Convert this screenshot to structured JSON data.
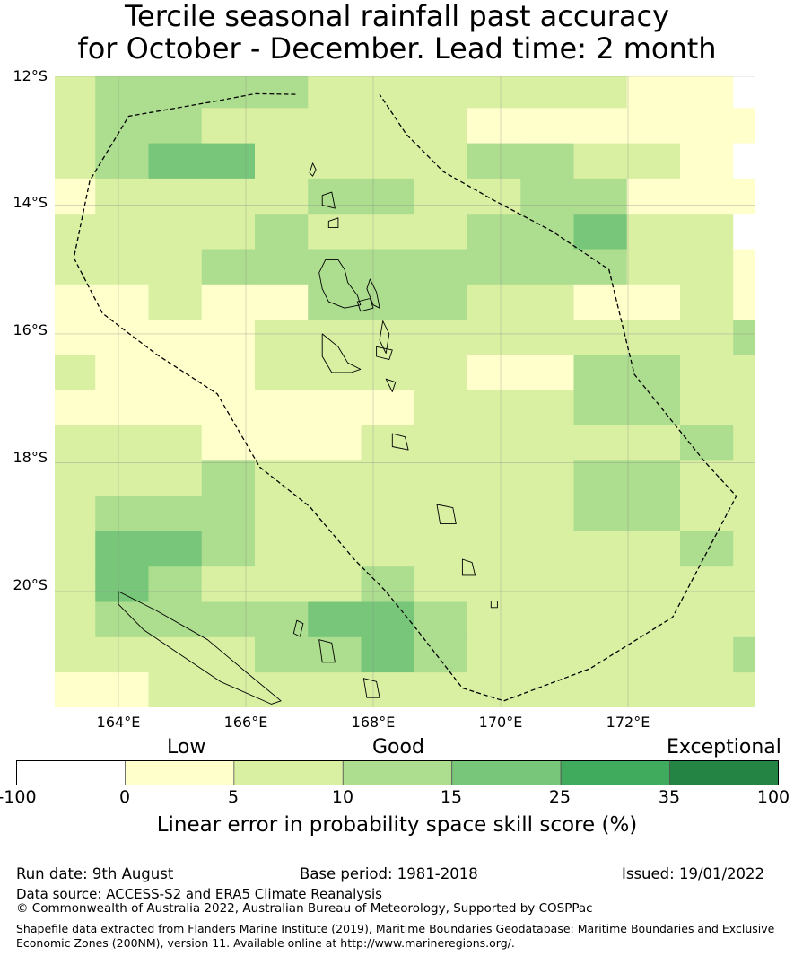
{
  "title": {
    "line1": "Tercile seasonal rainfall past accuracy",
    "line2": "for October - December. Lead time: 2 month"
  },
  "map": {
    "lat_labels": [
      "12°S",
      "14°S",
      "16°S",
      "18°S",
      "20°S"
    ],
    "lon_labels": [
      "164°E",
      "166°E",
      "168°E",
      "170°E",
      "172°E"
    ],
    "extent": {
      "lon": [
        163.0,
        174.0
      ],
      "lat": [
        -21.8,
        -12.0
      ]
    },
    "grid_step_deg": 2,
    "cell_size_deg": 0.833,
    "colors": {
      "c0": "#ffffff",
      "c1": "#ffffcc",
      "c2": "#d9f0a3",
      "c3": "#addd8e",
      "c4": "#78c679",
      "c5": "#41ab5d",
      "c6": "#238443"
    },
    "grid": [
      "2333322222211000",
      "2332222211111110",
      "2344222233221000",
      "1222233223311111",
      "2222322233422011",
      "2223333333322122",
      "1121133322112121",
      "1111222222222323",
      "2111222211332211",
      "1111111222332211",
      "2221112222223211",
      "2223222222332221",
      "2333222222332222",
      "2443222222223221",
      "2432223222222243",
      "2333344322222222",
      "2222334322222323",
      "1122222222222222",
      "1122222222222221",
      "2222222222222222"
    ],
    "eez_boundary": [
      [
        166.78,
        -12.28
      ],
      [
        166.15,
        -12.27
      ],
      [
        165.45,
        -12.4
      ],
      [
        164.16,
        -12.62
      ],
      [
        163.55,
        -13.62
      ],
      [
        163.3,
        -14.82
      ],
      [
        163.75,
        -15.68
      ],
      [
        164.6,
        -16.32
      ],
      [
        165.55,
        -16.93
      ],
      [
        166.22,
        -18.07
      ],
      [
        167.0,
        -18.68
      ],
      [
        167.7,
        -19.5
      ],
      [
        168.2,
        -20.0
      ],
      [
        168.65,
        -20.55
      ],
      [
        169.4,
        -21.5
      ],
      [
        170.05,
        -21.7
      ],
      [
        171.4,
        -21.2
      ],
      [
        172.7,
        -20.4
      ],
      [
        173.7,
        -18.52
      ],
      [
        173.2,
        -17.98
      ],
      [
        172.1,
        -16.63
      ],
      [
        171.7,
        -15.0
      ],
      [
        170.8,
        -14.4
      ],
      [
        169.9,
        -13.93
      ],
      [
        169.1,
        -13.48
      ],
      [
        168.52,
        -12.9
      ],
      [
        168.1,
        -12.28
      ]
    ],
    "islands": [
      [
        [
          167.45,
          -14.85
        ],
        [
          167.55,
          -15.0
        ],
        [
          167.6,
          -15.2
        ],
        [
          167.75,
          -15.4
        ],
        [
          167.8,
          -15.55
        ],
        [
          167.55,
          -15.6
        ],
        [
          167.3,
          -15.5
        ],
        [
          167.2,
          -15.3
        ],
        [
          167.15,
          -15.05
        ],
        [
          167.25,
          -14.85
        ]
      ],
      [
        [
          167.95,
          -15.15
        ],
        [
          168.05,
          -15.35
        ],
        [
          168.1,
          -15.6
        ],
        [
          168.0,
          -15.55
        ],
        [
          167.9,
          -15.3
        ]
      ],
      [
        [
          168.15,
          -15.8
        ],
        [
          168.25,
          -16.0
        ],
        [
          168.2,
          -16.3
        ],
        [
          168.1,
          -16.1
        ]
      ],
      [
        [
          167.75,
          -15.5
        ],
        [
          167.95,
          -15.45
        ],
        [
          168.0,
          -15.6
        ],
        [
          167.8,
          -15.65
        ]
      ],
      [
        [
          167.2,
          -16.0
        ],
        [
          167.45,
          -16.2
        ],
        [
          167.6,
          -16.45
        ],
        [
          167.8,
          -16.55
        ],
        [
          167.65,
          -16.6
        ],
        [
          167.35,
          -16.6
        ],
        [
          167.2,
          -16.35
        ]
      ],
      [
        [
          168.05,
          -16.2
        ],
        [
          168.3,
          -16.25
        ],
        [
          168.25,
          -16.4
        ],
        [
          168.05,
          -16.35
        ]
      ],
      [
        [
          168.2,
          -16.7
        ],
        [
          168.35,
          -16.75
        ],
        [
          168.3,
          -16.9
        ]
      ],
      [
        [
          168.3,
          -17.55
        ],
        [
          168.5,
          -17.6
        ],
        [
          168.55,
          -17.8
        ],
        [
          168.3,
          -17.75
        ]
      ],
      [
        [
          167.2,
          -13.85
        ],
        [
          167.35,
          -13.8
        ],
        [
          167.4,
          -14.05
        ],
        [
          167.2,
          -14.0
        ]
      ],
      [
        [
          167.3,
          -14.25
        ],
        [
          167.45,
          -14.2
        ],
        [
          167.45,
          -14.35
        ],
        [
          167.3,
          -14.35
        ]
      ],
      [
        [
          167.05,
          -13.35
        ],
        [
          167.1,
          -13.45
        ],
        [
          167.05,
          -13.55
        ],
        [
          167.0,
          -13.5
        ]
      ],
      [
        [
          169.0,
          -18.65
        ],
        [
          169.25,
          -18.7
        ],
        [
          169.3,
          -18.95
        ],
        [
          169.05,
          -18.95
        ]
      ],
      [
        [
          169.4,
          -19.5
        ],
        [
          169.55,
          -19.55
        ],
        [
          169.6,
          -19.75
        ],
        [
          169.4,
          -19.75
        ]
      ],
      [
        [
          169.85,
          -20.15
        ],
        [
          169.95,
          -20.15
        ],
        [
          169.95,
          -20.25
        ],
        [
          169.85,
          -20.25
        ]
      ],
      [
        [
          164.0,
          -20.0
        ],
        [
          164.6,
          -20.3
        ],
        [
          165.4,
          -20.75
        ],
        [
          166.0,
          -21.25
        ],
        [
          166.55,
          -21.7
        ],
        [
          166.4,
          -21.75
        ],
        [
          165.6,
          -21.4
        ],
        [
          165.0,
          -21.0
        ],
        [
          164.4,
          -20.6
        ],
        [
          164.0,
          -20.2
        ]
      ],
      [
        [
          166.8,
          -20.45
        ],
        [
          166.9,
          -20.5
        ],
        [
          166.85,
          -20.7
        ],
        [
          166.75,
          -20.65
        ]
      ],
      [
        [
          167.15,
          -20.75
        ],
        [
          167.35,
          -20.8
        ],
        [
          167.4,
          -21.1
        ],
        [
          167.2,
          -21.1
        ]
      ],
      [
        [
          167.85,
          -21.35
        ],
        [
          168.05,
          -21.4
        ],
        [
          168.1,
          -21.65
        ],
        [
          167.9,
          -21.65
        ]
      ]
    ]
  },
  "colorbar": {
    "categories": [
      "Low",
      "Good",
      "Exceptional"
    ],
    "ticks": [
      "-100",
      "0",
      "5",
      "10",
      "15",
      "25",
      "35",
      "100"
    ],
    "colors": [
      "#ffffff",
      "#ffffcc",
      "#d9f0a3",
      "#addd8e",
      "#78c679",
      "#41ab5d",
      "#238443"
    ],
    "label": "Linear error in probability space skill score (%)"
  },
  "footer": {
    "run_date": "Run date: 9th August",
    "base_period": "Base period: 1981-2018",
    "issued": "Issued: 19/01/2022",
    "data_source": "Data source: ACCESS-S2 and ERA5 Climate Reanalysis",
    "copyright": "© Commonwealth of Australia 2022, Australian Bureau of Meteorology, Supported by COSPPac",
    "shapefile_line1": "Shapefile data extracted from Flanders Marine Institute (2019), Maritime Boundaries Geodatabase: Maritime Boundaries and Exclusive",
    "shapefile_line2": "Economic Zones (200NM), version 11. Available online at http://www.marineregions.org/."
  }
}
